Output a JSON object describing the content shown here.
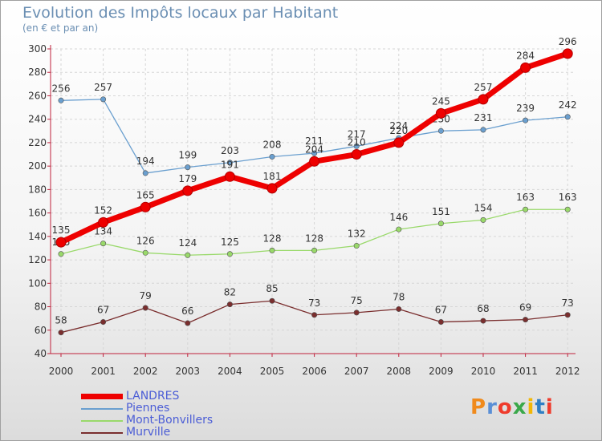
{
  "chart_data": {
    "type": "line",
    "title": "Evolution des Impôts locaux par Habitant",
    "subtitle": "(en € et par an)",
    "categories": [
      "2000",
      "2001",
      "2002",
      "2003",
      "2004",
      "2005",
      "2006",
      "2007",
      "2008",
      "2009",
      "2010",
      "2011",
      "2012"
    ],
    "ylim": [
      40,
      300
    ],
    "yticks": [
      40,
      60,
      80,
      100,
      120,
      140,
      160,
      180,
      200,
      220,
      240,
      260,
      280,
      300
    ],
    "grid": true,
    "legend_position": "bottom-left",
    "series": [
      {
        "name": "LANDRES",
        "color": "#ee0000",
        "values": [
          135,
          152,
          165,
          179,
          191,
          181,
          204,
          210,
          220,
          245,
          257,
          284,
          296
        ]
      },
      {
        "name": "Piennes",
        "color": "#6a9fcf",
        "values": [
          256,
          257,
          194,
          199,
          203,
          208,
          211,
          217,
          224,
          230,
          231,
          239,
          242
        ]
      },
      {
        "name": "Mont-Bonvillers",
        "color": "#99d96a",
        "values": [
          125,
          134,
          126,
          124,
          125,
          128,
          128,
          132,
          146,
          151,
          154,
          163,
          163
        ]
      },
      {
        "name": "Murville",
        "color": "#7a2e2e",
        "values": [
          58,
          67,
          79,
          66,
          82,
          85,
          73,
          75,
          78,
          67,
          68,
          69,
          73
        ]
      }
    ]
  },
  "logo": {
    "letters": [
      "P",
      "r",
      "o",
      "x",
      "i",
      "t",
      "i"
    ],
    "colors": [
      "#f08a1c",
      "#5a8fd6",
      "#ef3b2c",
      "#3aa84a",
      "#f2b705",
      "#2f7fc4",
      "#ef3b2c"
    ]
  }
}
